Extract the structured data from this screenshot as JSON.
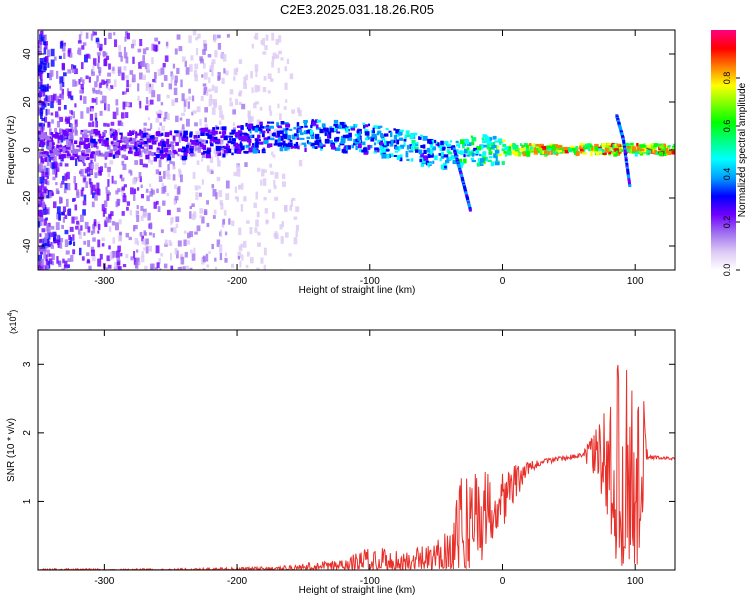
{
  "title": "C2E3.2025.031.18.26.R05",
  "chart_data": [
    {
      "type": "heatmap",
      "xlabel": "Height of straight line (km)",
      "ylabel": "Frequency (Hz)",
      "xlim": [
        -350,
        130
      ],
      "ylim": [
        -50,
        50
      ],
      "x_ticks": [
        -300,
        -200,
        -100,
        0,
        100
      ],
      "y_ticks": [
        -40,
        -20,
        0,
        20,
        40
      ],
      "colorbar": {
        "label": "Normalized spectral amplitude",
        "range": [
          0,
          1
        ],
        "ticks": [
          "0.0",
          "0.2",
          "0.4",
          "0.6",
          "0.8"
        ],
        "colors": [
          "#ffffff",
          "#dcc8f5",
          "#a070f0",
          "#7000ff",
          "#0000ff",
          "#00a0ff",
          "#00ffff",
          "#00ff80",
          "#00ff00",
          "#80ff00",
          "#ffff00",
          "#ff8000",
          "#ff0000",
          "#ff0080"
        ]
      },
      "ridge": [
        {
          "x": -340,
          "freq": 3,
          "amp": 0.25
        },
        {
          "x": -300,
          "freq": 3,
          "amp": 0.27
        },
        {
          "x": -260,
          "freq": 3,
          "amp": 0.28
        },
        {
          "x": -220,
          "freq": 4,
          "amp": 0.32
        },
        {
          "x": -180,
          "freq": 6,
          "amp": 0.38
        },
        {
          "x": -140,
          "freq": 7,
          "amp": 0.42
        },
        {
          "x": -110,
          "freq": 6,
          "amp": 0.45
        },
        {
          "x": -90,
          "freq": 4,
          "amp": 0.45
        },
        {
          "x": -70,
          "freq": 2,
          "amp": 0.5
        },
        {
          "x": -50,
          "freq": -2,
          "amp": 0.45
        },
        {
          "x": -40,
          "freq": -1,
          "amp": 0.55
        },
        {
          "x": -30,
          "freq": 0,
          "amp": 0.6
        },
        {
          "x": -10,
          "freq": 1,
          "amp": 0.65
        },
        {
          "x": 0,
          "freq": 1,
          "amp": 0.75
        },
        {
          "x": 20,
          "freq": 1,
          "amp": 0.85
        },
        {
          "x": 50,
          "freq": 1,
          "amp": 0.9
        },
        {
          "x": 80,
          "freq": 1,
          "amp": 0.9
        },
        {
          "x": 100,
          "freq": 1,
          "amp": 0.9
        },
        {
          "x": 130,
          "freq": 1,
          "amp": 0.9
        }
      ],
      "branches": [
        {
          "points": [
            [
              -38,
              2
            ],
            [
              -32,
              -10
            ],
            [
              -25,
              -25
            ]
          ],
          "amp": 0.35
        },
        {
          "points": [
            [
              85,
              15
            ],
            [
              90,
              5
            ],
            [
              95,
              -15
            ]
          ],
          "amp": 0.35
        }
      ]
    },
    {
      "type": "line",
      "xlabel": "Height of straight line (km)",
      "ylabel": "SNR (10 * v/v)",
      "y_multiplier": "(x10",
      "y_multiplier_exp": "4",
      "xlim": [
        -350,
        130
      ],
      "ylim": [
        0,
        3.5
      ],
      "x_ticks": [
        -300,
        -200,
        -100,
        0,
        100
      ],
      "y_ticks": [
        1,
        2,
        3
      ],
      "series": [
        {
          "color": "#e8302a",
          "envelope": [
            {
              "x": -350,
              "base": 0.0,
              "noise": 0.02
            },
            {
              "x": -250,
              "base": 0.0,
              "noise": 0.02
            },
            {
              "x": -170,
              "base": 0.02,
              "noise": 0.03
            },
            {
              "x": -120,
              "base": 0.05,
              "noise": 0.12
            },
            {
              "x": -100,
              "base": 0.1,
              "noise": 0.25
            },
            {
              "x": -70,
              "base": 0.1,
              "noise": 0.2
            },
            {
              "x": -50,
              "base": 0.15,
              "noise": 0.25
            },
            {
              "x": -40,
              "base": 0.3,
              "noise": 0.5
            },
            {
              "x": -30,
              "base": 0.6,
              "noise": 0.8
            },
            {
              "x": -20,
              "base": 0.8,
              "noise": 0.9
            },
            {
              "x": -10,
              "base": 0.9,
              "noise": 0.5
            },
            {
              "x": 0,
              "base": 1.05,
              "noise": 0.45
            },
            {
              "x": 20,
              "base": 1.5,
              "noise": 0.08
            },
            {
              "x": 40,
              "base": 1.62,
              "noise": 0.04
            },
            {
              "x": 60,
              "base": 1.67,
              "noise": 0.03
            },
            {
              "x": 70,
              "base": 1.7,
              "noise": 0.35
            },
            {
              "x": 80,
              "base": 1.5,
              "noise": 1.0
            },
            {
              "x": 90,
              "base": 1.5,
              "noise": 1.7
            },
            {
              "x": 100,
              "base": 1.3,
              "noise": 1.5
            },
            {
              "x": 105,
              "base": 1.3,
              "noise": 1.5
            },
            {
              "x": 110,
              "base": 1.65,
              "noise": 0.03
            },
            {
              "x": 130,
              "base": 1.62,
              "noise": 0.02
            }
          ]
        }
      ]
    }
  ]
}
